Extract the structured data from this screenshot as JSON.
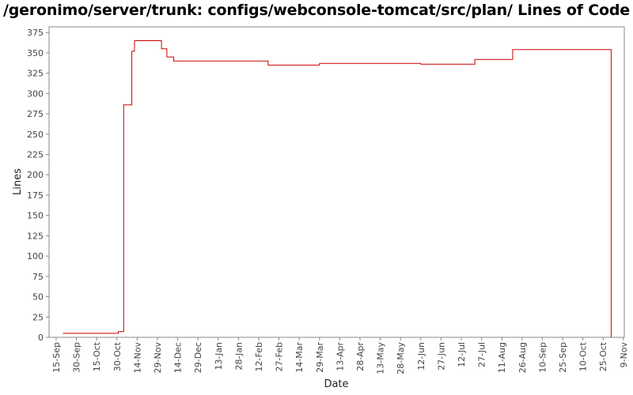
{
  "chart_data": {
    "type": "line",
    "title": "/geronimo/server/trunk: configs/webconsole-tomcat/src/plan/ Lines of Code",
    "xlabel": "Date",
    "ylabel": "Lines",
    "x_ticks": [
      "15-Sep",
      "30-Sep",
      "15-Oct",
      "30-Oct",
      "14-Nov",
      "29-Nov",
      "14-Dec",
      "29-Dec",
      "13-Jan",
      "28-Jan",
      "12-Feb",
      "27-Feb",
      "14-Mar",
      "29-Mar",
      "13-Apr",
      "28-Apr",
      "13-May",
      "28-May",
      "12-Jun",
      "27-Jun",
      "12-Jul",
      "27-Jul",
      "11-Aug",
      "26-Aug",
      "10-Sep",
      "25-Sep",
      "10-Oct",
      "25-Oct",
      "9-Nov"
    ],
    "y_ticks": [
      0,
      25,
      50,
      75,
      100,
      125,
      150,
      175,
      200,
      225,
      250,
      275,
      300,
      325,
      350,
      375
    ],
    "ylim": [
      0,
      382
    ],
    "grid": false,
    "step": true,
    "series": [
      {
        "color": "#cc0000",
        "points": [
          [
            "2006-09-20",
            5
          ],
          [
            "2006-10-31",
            7
          ],
          [
            "2006-11-04",
            286
          ],
          [
            "2006-11-10",
            352
          ],
          [
            "2006-11-12",
            365
          ],
          [
            "2006-12-02",
            355
          ],
          [
            "2006-12-06",
            345
          ],
          [
            "2006-12-11",
            340
          ],
          [
            "2007-02-19",
            335
          ],
          [
            "2007-03-29",
            337
          ],
          [
            "2007-06-12",
            336
          ],
          [
            "2007-07-22",
            342
          ],
          [
            "2007-08-19",
            354
          ],
          [
            "2007-10-31",
            354
          ],
          [
            "2007-10-31",
            0
          ]
        ]
      }
    ]
  }
}
